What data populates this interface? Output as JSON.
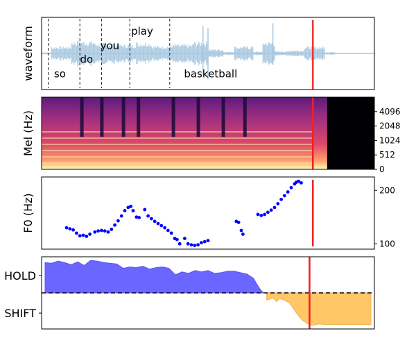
{
  "chart_data": [
    {
      "type": "line",
      "panel": "waveform",
      "ylabel": "waveform",
      "x_range": [
        0,
        1
      ],
      "series": [
        {
          "color": "#a6c7e0",
          "segments": [
            {
              "x": [
                0.0,
                0.03
              ],
              "amp": 0.03
            },
            {
              "x": [
                0.03,
                0.09
              ],
              "amp": 0.2
            },
            {
              "x": [
                0.09,
                0.16
              ],
              "amp": 0.36
            },
            {
              "x": [
                0.16,
                0.23
              ],
              "amp": 0.3
            },
            {
              "x": [
                0.23,
                0.285
              ],
              "amp": 0.26
            },
            {
              "x": [
                0.285,
                0.33
              ],
              "amp": 0.32
            },
            {
              "x": [
                0.33,
                0.395
              ],
              "amp": 0.22
            },
            {
              "x": [
                0.395,
                0.455
              ],
              "amp": 0.26
            },
            {
              "x": [
                0.455,
                0.5
              ],
              "amp": 0.34
            },
            {
              "x": [
                0.5,
                0.545
              ],
              "amp": 0.12
            },
            {
              "x": [
                0.545,
                0.58
              ],
              "amp": 0.05
            },
            {
              "x": [
                0.58,
                0.635
              ],
              "amp": 0.2
            },
            {
              "x": [
                0.635,
                0.665
              ],
              "amp": 0.05
            },
            {
              "x": [
                0.665,
                0.7
              ],
              "amp": 0.34
            },
            {
              "x": [
                0.7,
                0.745
              ],
              "amp": 0.06
            },
            {
              "x": [
                0.745,
                0.79
              ],
              "amp": 0.09
            },
            {
              "x": [
                0.79,
                0.85
              ],
              "amp": 0.2
            },
            {
              "x": [
                0.85,
                0.88
              ],
              "amp": 0.04
            },
            {
              "x": [
                0.88,
                1.0
              ],
              "amp": 0.01
            }
          ],
          "spikes": [
            {
              "x": 0.485,
              "top": 0.12,
              "bottom": 0.8
            },
            {
              "x": 0.5,
              "top": 0.15,
              "bottom": 0.86
            },
            {
              "x": 0.695,
              "top": 0.08,
              "bottom": 0.66
            }
          ]
        }
      ],
      "word_boundaries": [
        0.02,
        0.115,
        0.18,
        0.265,
        0.385
      ],
      "words": [
        {
          "text": "so",
          "x": 0.055,
          "y": 0.83
        },
        {
          "text": "do",
          "x": 0.135,
          "y": 0.63
        },
        {
          "text": "you",
          "x": 0.205,
          "y": 0.44
        },
        {
          "text": "play",
          "x": 0.302,
          "y": 0.24
        },
        {
          "text": "basketball",
          "x": 0.508,
          "y": 0.83
        }
      ],
      "cursor_x": 0.815
    },
    {
      "type": "heatmap",
      "panel": "mel",
      "ylabel": "Mel (Hz)",
      "y_ticks": [
        "0",
        "512",
        "1024",
        "2048",
        "4096"
      ],
      "y_tick_pos": [
        0.0,
        0.2,
        0.4,
        0.6,
        0.8
      ],
      "silence_start": 0.858,
      "dark_gaps": [
        0.12,
        0.18,
        0.245,
        0.29,
        0.395,
        0.47,
        0.545,
        0.61
      ],
      "colormap": [
        "#000004",
        "#3b0f70",
        "#8c2981",
        "#de4968",
        "#fe9f6d",
        "#fcfdbf"
      ],
      "cursor_x": 0.815
    },
    {
      "type": "scatter",
      "panel": "f0",
      "ylabel": "F0 (Hz)",
      "ylim": [
        90,
        225
      ],
      "y_ticks": [
        100,
        200
      ],
      "color": "#0000ff",
      "points": [
        [
          0.075,
          130
        ],
        [
          0.085,
          128
        ],
        [
          0.095,
          126
        ],
        [
          0.105,
          120
        ],
        [
          0.115,
          115
        ],
        [
          0.125,
          116
        ],
        [
          0.135,
          114
        ],
        [
          0.145,
          118
        ],
        [
          0.16,
          122
        ],
        [
          0.17,
          124
        ],
        [
          0.18,
          125
        ],
        [
          0.19,
          124
        ],
        [
          0.2,
          122
        ],
        [
          0.21,
          127
        ],
        [
          0.22,
          135
        ],
        [
          0.23,
          143
        ],
        [
          0.24,
          152
        ],
        [
          0.25,
          162
        ],
        [
          0.26,
          168
        ],
        [
          0.268,
          170
        ],
        [
          0.275,
          162
        ],
        [
          0.285,
          150
        ],
        [
          0.293,
          149
        ],
        [
          0.31,
          164
        ],
        [
          0.32,
          152
        ],
        [
          0.33,
          147
        ],
        [
          0.34,
          142
        ],
        [
          0.35,
          138
        ],
        [
          0.36,
          134
        ],
        [
          0.37,
          130
        ],
        [
          0.38,
          125
        ],
        [
          0.39,
          120
        ],
        [
          0.4,
          110
        ],
        [
          0.407,
          108
        ],
        [
          0.415,
          100
        ],
        [
          0.43,
          110
        ],
        [
          0.44,
          100
        ],
        [
          0.45,
          98
        ],
        [
          0.46,
          97
        ],
        [
          0.47,
          98
        ],
        [
          0.48,
          102
        ],
        [
          0.49,
          104
        ],
        [
          0.5,
          106
        ],
        [
          0.585,
          142
        ],
        [
          0.592,
          140
        ],
        [
          0.6,
          125
        ],
        [
          0.605,
          118
        ],
        [
          0.65,
          155
        ],
        [
          0.66,
          153
        ],
        [
          0.67,
          155
        ],
        [
          0.68,
          159
        ],
        [
          0.69,
          163
        ],
        [
          0.7,
          168
        ],
        [
          0.71,
          175
        ],
        [
          0.72,
          183
        ],
        [
          0.73,
          190
        ],
        [
          0.74,
          197
        ],
        [
          0.75,
          205
        ],
        [
          0.76,
          212
        ],
        [
          0.765,
          215
        ],
        [
          0.772,
          217
        ],
        [
          0.78,
          214
        ]
      ],
      "cursor_x": 0.815
    },
    {
      "type": "area",
      "panel": "turn",
      "y_ticks": [
        "HOLD",
        "SHIFT"
      ],
      "ylim": [
        -0.5,
        0.5
      ],
      "baseline": 0,
      "hold_color": "#6b66ff",
      "shift_color": "#ffc766",
      "hold_x": [
        0.0,
        0.02,
        0.04,
        0.06,
        0.08,
        0.1,
        0.12,
        0.14,
        0.16,
        0.18,
        0.2,
        0.22,
        0.24,
        0.26,
        0.28,
        0.3,
        0.32,
        0.34,
        0.36,
        0.38,
        0.4,
        0.42,
        0.44,
        0.46,
        0.48,
        0.5,
        0.52,
        0.54,
        0.56,
        0.58,
        0.6,
        0.62,
        0.64,
        0.65,
        0.66,
        0.67
      ],
      "hold_y": [
        0.42,
        0.41,
        0.44,
        0.42,
        0.39,
        0.43,
        0.38,
        0.45,
        0.44,
        0.42,
        0.41,
        0.4,
        0.34,
        0.36,
        0.35,
        0.37,
        0.33,
        0.35,
        0.36,
        0.34,
        0.25,
        0.29,
        0.27,
        0.31,
        0.29,
        0.31,
        0.27,
        0.28,
        0.3,
        0.3,
        0.28,
        0.26,
        0.2,
        0.12,
        0.05,
        0.0
      ],
      "shift_x": [
        0.68,
        0.7,
        0.71,
        0.72,
        0.735,
        0.75,
        0.76,
        0.77,
        0.78,
        0.79,
        0.8,
        0.81,
        0.82,
        0.84,
        0.86,
        0.9,
        0.95,
        1.0
      ],
      "shift_y": [
        -0.1,
        -0.07,
        -0.12,
        -0.08,
        -0.1,
        -0.14,
        -0.2,
        -0.27,
        -0.33,
        -0.38,
        -0.41,
        -0.44,
        -0.45,
        -0.43,
        -0.44,
        -0.44,
        -0.44,
        -0.44
      ],
      "cursor_x": 0.805
    }
  ]
}
